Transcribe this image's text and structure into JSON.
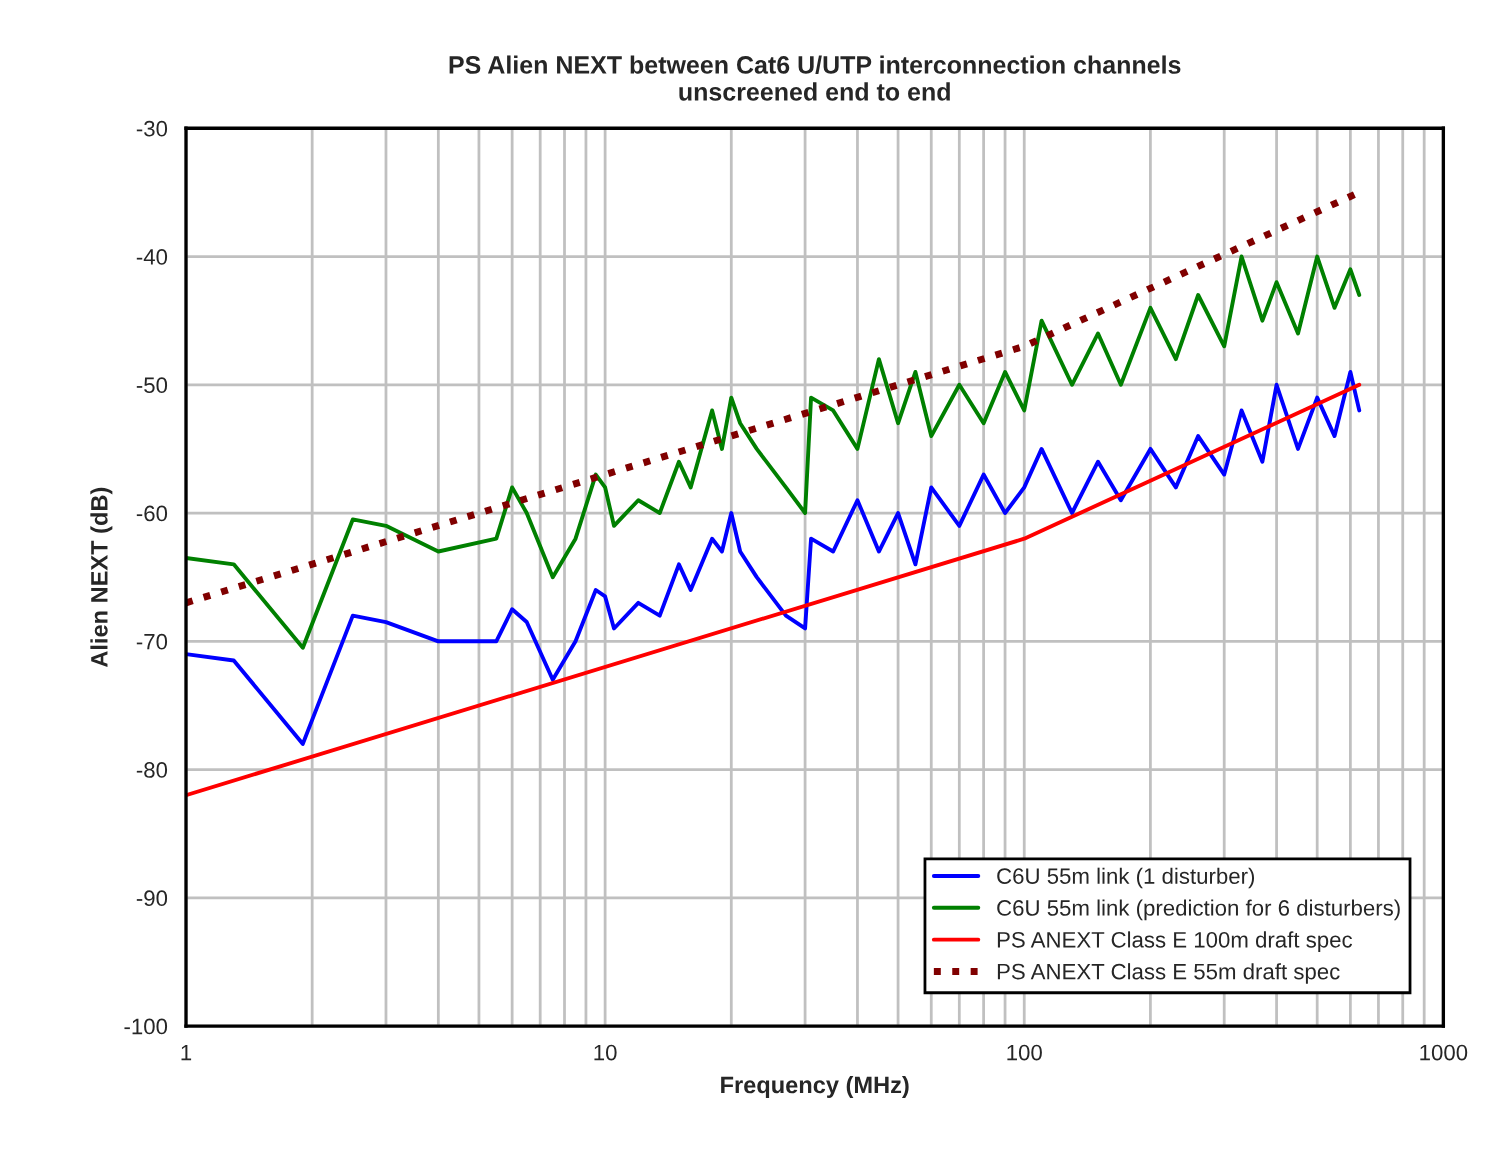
{
  "chart_data": {
    "type": "line",
    "title": "PS Alien NEXT between Cat6 U/UTP interconnection channels\nunscreened end to end",
    "xlabel": "Frequency (MHz)",
    "ylabel": "Alien NEXT (dB)",
    "log": "x",
    "xlim": [
      1,
      1000
    ],
    "ylim": [
      -100,
      -30
    ],
    "xticks": [
      1,
      {
        "value": 2,
        "label": null
      },
      {
        "value": 3,
        "label": null
      },
      {
        "value": 4,
        "label": null
      },
      {
        "value": 5,
        "label": null
      },
      {
        "value": 6,
        "label": null
      },
      {
        "value": 7,
        "label": null
      },
      {
        "value": 8,
        "label": null
      },
      {
        "value": 9,
        "label": null
      },
      10,
      {
        "value": 20,
        "label": null
      },
      {
        "value": 30,
        "label": null
      },
      {
        "value": 40,
        "label": null
      },
      {
        "value": 50,
        "label": null
      },
      {
        "value": 60,
        "label": null
      },
      {
        "value": 70,
        "label": null
      },
      {
        "value": 80,
        "label": null
      },
      {
        "value": 90,
        "label": null
      },
      100,
      {
        "value": 200,
        "label": null
      },
      {
        "value": 300,
        "label": null
      },
      {
        "value": 400,
        "label": null
      },
      {
        "value": 500,
        "label": null
      },
      {
        "value": 600,
        "label": null
      },
      {
        "value": 700,
        "label": null
      },
      {
        "value": 800,
        "label": null
      },
      {
        "value": 900,
        "label": null
      },
      1000
    ],
    "yticks": [
      -100,
      -90,
      -80,
      -70,
      -60,
      -50,
      -40,
      -30
    ],
    "grid": true,
    "legend": "bottom right",
    "series": [
      {
        "name": "C6U 55m link (1 disturber)",
        "color": "#0000ff",
        "line_style": "solid",
        "x": [
          1,
          1.3,
          1.9,
          2.5,
          3,
          4,
          5.5,
          6,
          6.5,
          7.5,
          8.5,
          9.5,
          10,
          10.5,
          12,
          13.5,
          15,
          16,
          18,
          19,
          20,
          21,
          23,
          27,
          30,
          31,
          35,
          40,
          45,
          50,
          55,
          60,
          70,
          80,
          90,
          100,
          110,
          130,
          150,
          170,
          200,
          230,
          260,
          300,
          330,
          370,
          400,
          450,
          500,
          550,
          600,
          630
        ],
        "values": [
          -71,
          -71.5,
          -78,
          -68,
          -68.5,
          -70,
          -70,
          -67.5,
          -68.5,
          -73,
          -70,
          -66,
          -66.5,
          -69,
          -67,
          -68,
          -64,
          -66,
          -62,
          -63,
          -60,
          -63,
          -65,
          -68,
          -69,
          -62,
          -63,
          -59,
          -63,
          -60,
          -64,
          -58,
          -61,
          -57,
          -60,
          -58,
          -55,
          -60,
          -56,
          -59,
          -55,
          -58,
          -54,
          -57,
          -52,
          -56,
          -50,
          -55,
          -51,
          -54,
          -49,
          -52
        ]
      },
      {
        "name": "C6U 55m link (prediction for 6 disturbers)",
        "color": "#008000",
        "line_style": "solid",
        "x": [
          1,
          1.3,
          1.9,
          2.5,
          3,
          4,
          5.5,
          6,
          6.5,
          7.5,
          8.5,
          9.5,
          10,
          10.5,
          12,
          13.5,
          15,
          16,
          18,
          19,
          20,
          21,
          23,
          27,
          30,
          31,
          35,
          40,
          45,
          50,
          55,
          60,
          70,
          80,
          90,
          100,
          110,
          130,
          150,
          170,
          200,
          230,
          260,
          300,
          330,
          370,
          400,
          450,
          500,
          550,
          600,
          630
        ],
        "values": [
          -63.5,
          -64,
          -70.5,
          -60.5,
          -61,
          -63,
          -62,
          -58,
          -60,
          -65,
          -62,
          -57,
          -58,
          -61,
          -59,
          -60,
          -56,
          -58,
          -52,
          -55,
          -51,
          -53,
          -55,
          -58,
          -60,
          -51,
          -52,
          -55,
          -48,
          -53,
          -49,
          -54,
          -50,
          -53,
          -49,
          -52,
          -45,
          -50,
          -46,
          -50,
          -44,
          -48,
          -43,
          -47,
          -40,
          -45,
          -42,
          -46,
          -40,
          -44,
          -41,
          -43
        ]
      },
      {
        "name": "PS ANEXT Class E 100m draft spec",
        "color": "#ff0000",
        "line_style": "solid",
        "x": [
          1,
          100,
          630
        ],
        "values": [
          -82,
          -62,
          -50
        ]
      },
      {
        "name": "PS ANEXT Class E 55m draft spec",
        "color": "#800000",
        "line_style": "dotted",
        "x": [
          1,
          10,
          100,
          630
        ],
        "values": [
          -67,
          -57,
          -47,
          -35
        ]
      }
    ]
  }
}
